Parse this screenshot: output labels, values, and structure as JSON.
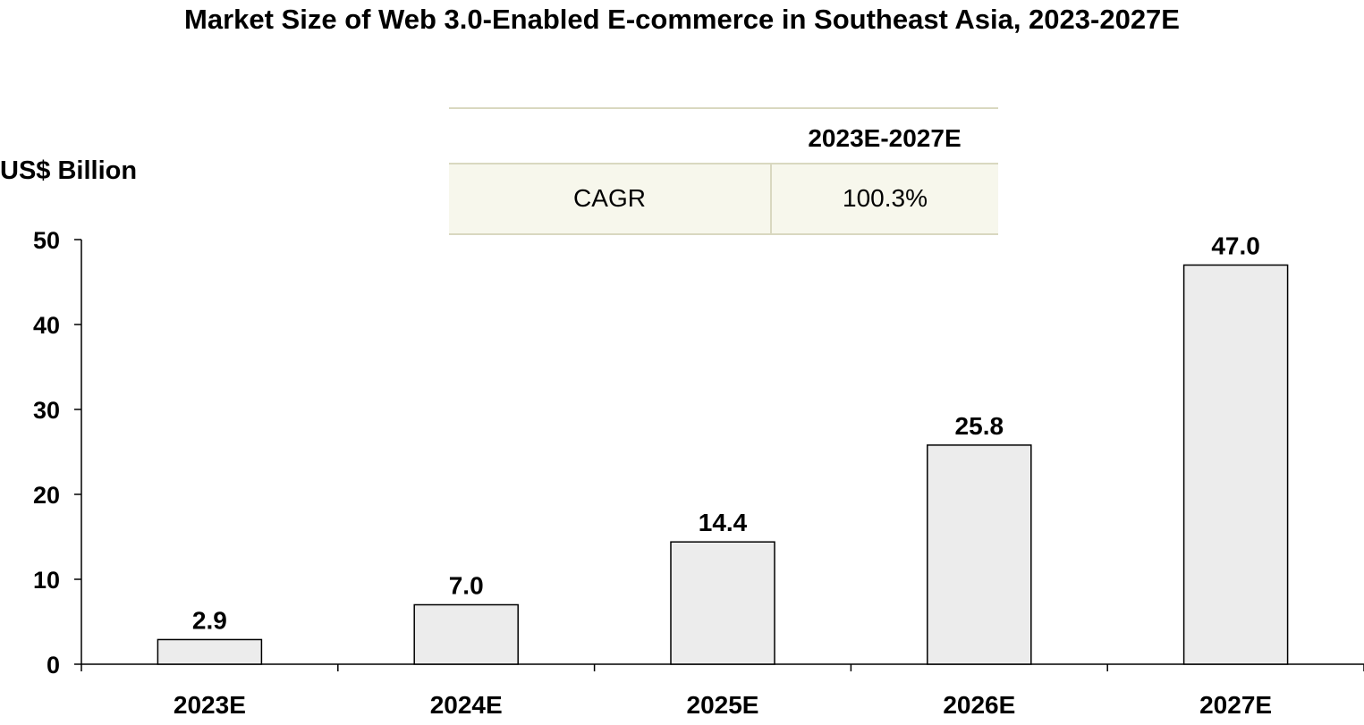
{
  "chart_data": {
    "type": "bar",
    "title": "Market Size of Web 3.0-Enabled E-commerce in Southeast Asia, 2023-2027E",
    "ylabel": "US$ Billion",
    "xlabel": "",
    "categories": [
      "2023E",
      "2024E",
      "2025E",
      "2026E",
      "2027E"
    ],
    "values": [
      2.9,
      7.0,
      14.4,
      25.8,
      47.0
    ],
    "value_labels": [
      "2.9",
      "7.0",
      "14.4",
      "25.8",
      "47.0"
    ],
    "ylim": [
      0,
      50
    ],
    "yticks": [
      0,
      10,
      20,
      30,
      40,
      50
    ],
    "grid": false,
    "bar_color": "#ececec",
    "bar_edge_color": "#000000",
    "table": {
      "header": "2023E-2027E",
      "row_label": "CAGR",
      "row_value": "100.3%",
      "rule_color": "#d9d8c0",
      "fill_color": "#f7f7ec"
    }
  }
}
